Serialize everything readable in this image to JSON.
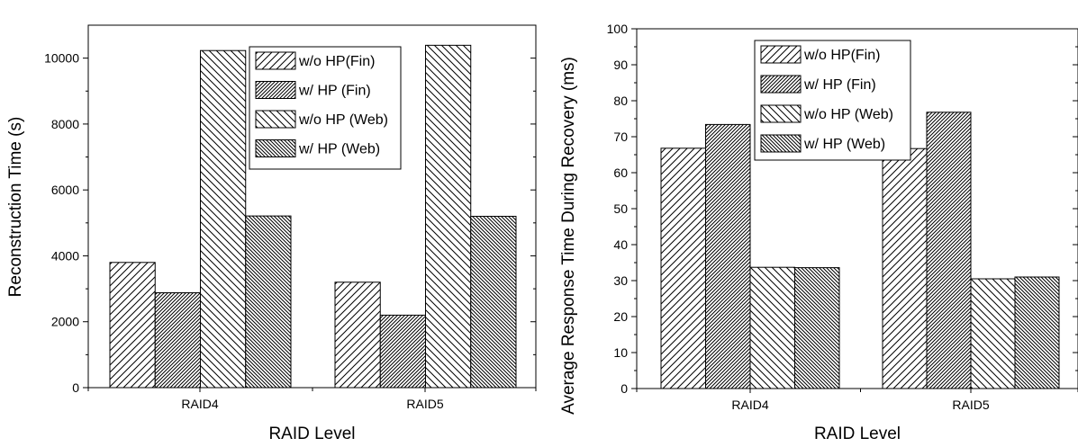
{
  "chart_data": [
    {
      "type": "bar",
      "categories": [
        "RAID4",
        "RAID5"
      ],
      "series": [
        {
          "name": "w/o HP(Fin)",
          "values": [
            3800,
            3200
          ]
        },
        {
          "name": "w/ HP (Fin)",
          "values": [
            2880,
            2200
          ]
        },
        {
          "name": "w/o HP (Web)",
          "values": [
            10230,
            10390
          ]
        },
        {
          "name": "w/ HP (Web)",
          "values": [
            5210,
            5200
          ]
        }
      ],
      "xlabel": "RAID Level",
      "ylabel": "Reconstruction Time (s)",
      "ylim": [
        0,
        11000
      ],
      "yticks": [
        0,
        2000,
        4000,
        6000,
        8000,
        10000
      ],
      "grid": false,
      "legend_position": "top-right"
    },
    {
      "type": "bar",
      "categories": [
        "RAID4",
        "RAID5"
      ],
      "series": [
        {
          "name": "w/o HP(Fin)",
          "values": [
            66.8,
            66.7
          ]
        },
        {
          "name": "w/ HP (Fin)",
          "values": [
            73.4,
            76.8
          ]
        },
        {
          "name": "w/o HP (Web)",
          "values": [
            33.7,
            30.5
          ]
        },
        {
          "name": "w/ HP (Web)",
          "values": [
            33.6,
            31.0
          ]
        }
      ],
      "xlabel": "RAID Level",
      "ylabel": "Average Response Time During Recovery (ms)",
      "ylim": [
        0,
        100
      ],
      "yticks": [
        0,
        10,
        20,
        30,
        40,
        50,
        60,
        70,
        80,
        90,
        100
      ],
      "grid": false,
      "legend_position": "top-center"
    }
  ]
}
